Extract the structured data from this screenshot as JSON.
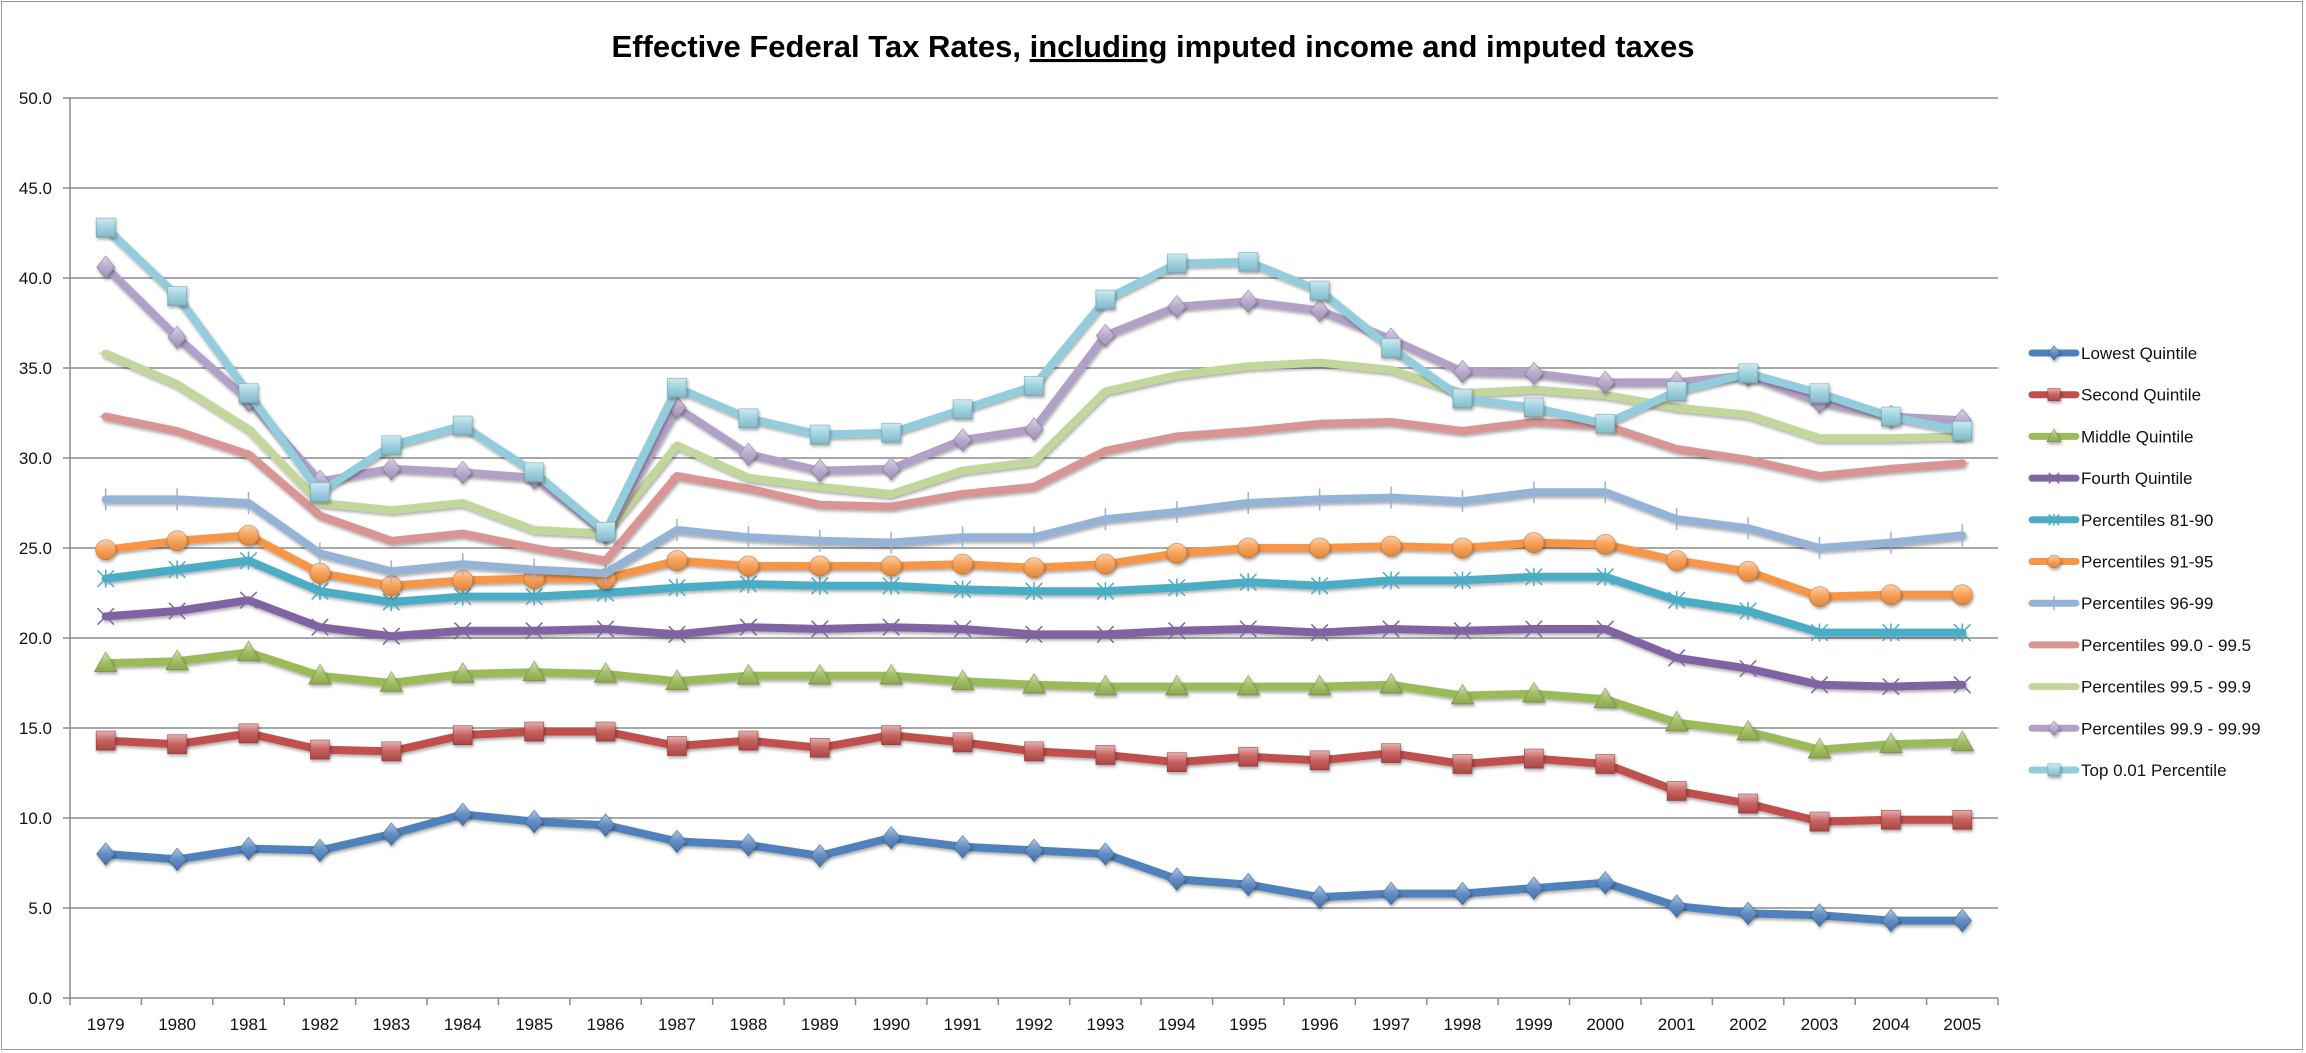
{
  "chart_data": {
    "type": "line",
    "title": {
      "prefix": "Effective Federal Tax Rates, ",
      "underlined": "including",
      "suffix": " imputed income and imputed taxes"
    },
    "xlabel": "",
    "ylabel": "",
    "ylim": [
      0,
      50
    ],
    "y_ticks": [
      "0.0",
      "5.0",
      "10.0",
      "15.0",
      "20.0",
      "25.0",
      "30.0",
      "35.0",
      "40.0",
      "45.0",
      "50.0"
    ],
    "y_tick_values": [
      0,
      5,
      10,
      15,
      20,
      25,
      30,
      35,
      40,
      45,
      50
    ],
    "grid": true,
    "legend_position": "right",
    "categories": [
      "1979",
      "1980",
      "1981",
      "1982",
      "1983",
      "1984",
      "1985",
      "1986",
      "1987",
      "1988",
      "1989",
      "1990",
      "1991",
      "1992",
      "1993",
      "1994",
      "1995",
      "1996",
      "1997",
      "1998",
      "1999",
      "2000",
      "2001",
      "2002",
      "2003",
      "2004",
      "2005"
    ],
    "series": [
      {
        "name": "Lowest Quintile",
        "color": "#4f81bd",
        "marker": "diamond",
        "values": [
          8.0,
          7.7,
          8.3,
          8.2,
          9.1,
          10.2,
          9.8,
          9.6,
          8.7,
          8.5,
          7.9,
          8.9,
          8.4,
          8.2,
          8.0,
          6.6,
          6.3,
          5.6,
          5.8,
          5.8,
          6.1,
          6.4,
          5.1,
          4.7,
          4.6,
          4.3,
          4.3
        ]
      },
      {
        "name": "Second Quintile",
        "color": "#c0504d",
        "marker": "square",
        "values": [
          14.3,
          14.1,
          14.7,
          13.8,
          13.7,
          14.6,
          14.8,
          14.8,
          14.0,
          14.3,
          13.9,
          14.6,
          14.2,
          13.7,
          13.5,
          13.1,
          13.4,
          13.2,
          13.6,
          13.0,
          13.3,
          13.0,
          11.5,
          10.8,
          9.8,
          9.9,
          9.9
        ]
      },
      {
        "name": "Middle Quintile",
        "color": "#9bbb59",
        "marker": "triangle",
        "values": [
          18.6,
          18.7,
          19.2,
          17.9,
          17.5,
          18.0,
          18.1,
          18.0,
          17.6,
          17.9,
          17.9,
          17.9,
          17.6,
          17.4,
          17.3,
          17.3,
          17.3,
          17.3,
          17.4,
          16.8,
          16.9,
          16.6,
          15.3,
          14.8,
          13.8,
          14.1,
          14.2
        ]
      },
      {
        "name": "Fourth Quintile",
        "color": "#8064a2",
        "marker": "x",
        "values": [
          21.2,
          21.5,
          22.1,
          20.6,
          20.1,
          20.4,
          20.4,
          20.5,
          20.2,
          20.6,
          20.5,
          20.6,
          20.5,
          20.2,
          20.2,
          20.4,
          20.5,
          20.3,
          20.5,
          20.4,
          20.5,
          20.5,
          18.9,
          18.3,
          17.4,
          17.3,
          17.4
        ]
      },
      {
        "name": "Percentiles 81-90",
        "color": "#4bacc6",
        "marker": "star",
        "values": [
          23.3,
          23.8,
          24.3,
          22.6,
          22.0,
          22.3,
          22.3,
          22.5,
          22.8,
          23.0,
          22.9,
          22.9,
          22.7,
          22.6,
          22.6,
          22.8,
          23.1,
          22.9,
          23.2,
          23.2,
          23.4,
          23.4,
          22.1,
          21.5,
          20.3,
          20.3,
          20.3
        ]
      },
      {
        "name": "Percentiles 91-95",
        "color": "#f79646",
        "marker": "circle",
        "values": [
          24.9,
          25.4,
          25.7,
          23.6,
          22.9,
          23.2,
          23.3,
          23.3,
          24.3,
          24.0,
          24.0,
          24.0,
          24.1,
          23.9,
          24.1,
          24.7,
          25.0,
          25.0,
          25.1,
          25.0,
          25.3,
          25.2,
          24.3,
          23.7,
          22.3,
          22.4,
          22.4
        ]
      },
      {
        "name": "Percentiles 96-99",
        "color": "#95b3d7",
        "marker": "plus",
        "values": [
          27.7,
          27.7,
          27.5,
          24.7,
          23.7,
          24.1,
          23.8,
          23.6,
          26.0,
          25.6,
          25.4,
          25.3,
          25.6,
          25.6,
          26.6,
          27.0,
          27.5,
          27.7,
          27.8,
          27.6,
          28.1,
          28.1,
          26.6,
          26.1,
          25.0,
          25.3,
          25.7
        ]
      },
      {
        "name": "Percentiles 99.0 - 99.5",
        "color": "#d99594",
        "marker": "dash",
        "values": [
          32.3,
          31.5,
          30.2,
          26.8,
          25.4,
          25.8,
          25.0,
          24.3,
          29.0,
          28.3,
          27.4,
          27.3,
          28.0,
          28.4,
          30.4,
          31.2,
          31.5,
          31.9,
          32.0,
          31.5,
          32.0,
          31.8,
          30.5,
          29.9,
          29.0,
          29.4,
          29.7
        ]
      },
      {
        "name": "Percentiles 99.5 - 99.9",
        "color": "#c3d69b",
        "marker": "dash",
        "values": [
          35.8,
          34.1,
          31.6,
          27.5,
          27.1,
          27.5,
          26.0,
          25.8,
          30.7,
          28.9,
          28.4,
          28.0,
          29.3,
          29.8,
          33.7,
          34.6,
          35.1,
          35.3,
          34.9,
          33.6,
          33.8,
          33.5,
          32.8,
          32.4,
          31.1,
          31.1,
          31.2
        ]
      },
      {
        "name": "Percentiles 99.9 - 99.99",
        "color": "#b2a1c7",
        "marker": "diamond",
        "values": [
          40.6,
          36.7,
          33.2,
          28.7,
          29.4,
          29.2,
          28.9,
          25.8,
          32.8,
          30.2,
          29.3,
          29.4,
          31.0,
          31.6,
          36.8,
          38.4,
          38.7,
          38.2,
          36.6,
          34.8,
          34.7,
          34.2,
          34.2,
          34.6,
          33.1,
          32.3,
          32.1
        ]
      },
      {
        "name": "Top 0.01 Percentile",
        "color": "#93cddd",
        "marker": "square",
        "values": [
          42.8,
          39.0,
          33.6,
          28.1,
          30.7,
          31.8,
          29.2,
          25.9,
          33.9,
          32.2,
          31.3,
          31.4,
          32.7,
          34.0,
          38.8,
          40.8,
          40.9,
          39.3,
          36.1,
          33.3,
          32.8,
          31.9,
          33.7,
          34.7,
          33.6,
          32.3,
          31.5
        ]
      }
    ]
  }
}
